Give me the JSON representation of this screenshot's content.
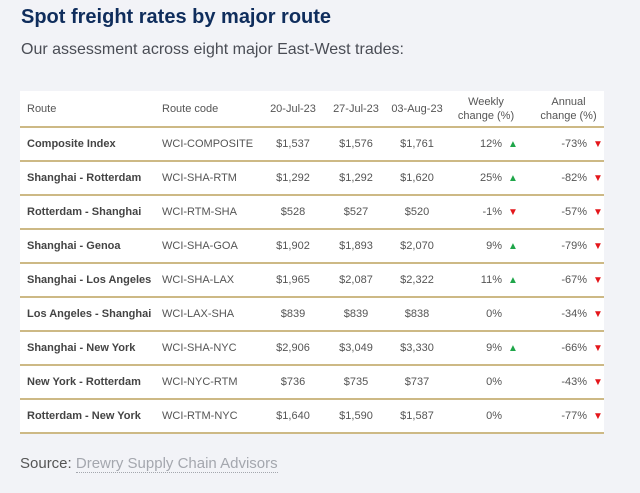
{
  "title": "Spot freight rates by major route",
  "subtitle": "Our assessment across eight major East-West trades:",
  "table": {
    "headers": {
      "route": "Route",
      "code": "Route code",
      "d1": "20-Jul-23",
      "d2": "27-Jul-23",
      "d3": "03-Aug-23",
      "weekly_1": "Weekly",
      "weekly_2": "change (%)",
      "annual_1": "Annual",
      "annual_2": "change (%)"
    },
    "rows": [
      {
        "route": "Composite Index",
        "code": "WCI-COMPOSITE",
        "d1": "$1,537",
        "d2": "$1,576",
        "d3": "$1,761",
        "weekly": "12%",
        "weekly_dir": "up",
        "annual": "-73%",
        "annual_dir": "down"
      },
      {
        "route": "Shanghai - Rotterdam",
        "code": "WCI-SHA-RTM",
        "d1": "$1,292",
        "d2": "$1,292",
        "d3": "$1,620",
        "weekly": "25%",
        "weekly_dir": "up",
        "annual": "-82%",
        "annual_dir": "down"
      },
      {
        "route": "Rotterdam - Shanghai",
        "code": "WCI-RTM-SHA",
        "d1": "$528",
        "d2": "$527",
        "d3": "$520",
        "weekly": "-1%",
        "weekly_dir": "down",
        "annual": "-57%",
        "annual_dir": "down"
      },
      {
        "route": "Shanghai - Genoa",
        "code": "WCI-SHA-GOA",
        "d1": "$1,902",
        "d2": "$1,893",
        "d3": "$2,070",
        "weekly": "9%",
        "weekly_dir": "up",
        "annual": "-79%",
        "annual_dir": "down"
      },
      {
        "route": "Shanghai - Los Angeles",
        "code": "WCI-SHA-LAX",
        "d1": "$1,965",
        "d2": "$2,087",
        "d3": "$2,322",
        "weekly": "11%",
        "weekly_dir": "up",
        "annual": "-67%",
        "annual_dir": "down"
      },
      {
        "route": "Los Angeles - Shanghai",
        "code": "WCI-LAX-SHA",
        "d1": "$839",
        "d2": "$839",
        "d3": "$838",
        "weekly": "0%",
        "weekly_dir": "none",
        "annual": "-34%",
        "annual_dir": "down"
      },
      {
        "route": "Shanghai - New York",
        "code": "WCI-SHA-NYC",
        "d1": "$2,906",
        "d2": "$3,049",
        "d3": "$3,330",
        "weekly": "9%",
        "weekly_dir": "up",
        "annual": "-66%",
        "annual_dir": "down"
      },
      {
        "route": "New York - Rotterdam",
        "code": "WCI-NYC-RTM",
        "d1": "$736",
        "d2": "$735",
        "d3": "$737",
        "weekly": "0%",
        "weekly_dir": "none",
        "annual": "-43%",
        "annual_dir": "down"
      },
      {
        "route": "Rotterdam - New York",
        "code": "WCI-RTM-NYC",
        "d1": "$1,640",
        "d2": "$1,590",
        "d3": "$1,587",
        "weekly": "0%",
        "weekly_dir": "none",
        "annual": "-77%",
        "annual_dir": "down"
      }
    ]
  },
  "colors": {
    "up": "#1fa64a",
    "down": "#e4161b",
    "title": "#0f2d5c",
    "rule": "#cdb985"
  },
  "source": {
    "label": "Source:",
    "link": "Drewry Supply Chain Advisors"
  }
}
